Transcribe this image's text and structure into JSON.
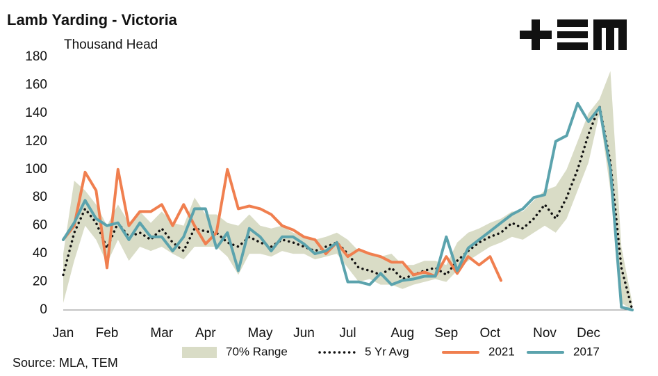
{
  "chart_data": {
    "type": "line",
    "title": "Lamb Yarding - Victoria",
    "y_label": "Thousand Head",
    "source": "Source: MLA, TEM",
    "categories": [
      "Jan",
      null,
      null,
      null,
      "Feb",
      null,
      null,
      null,
      null,
      "Mar",
      null,
      null,
      null,
      "Apr",
      null,
      null,
      null,
      null,
      "May",
      null,
      null,
      null,
      "Jun",
      null,
      null,
      null,
      "Jul",
      null,
      null,
      null,
      null,
      "Aug",
      null,
      null,
      null,
      "Sep",
      null,
      null,
      null,
      "Oct",
      null,
      null,
      null,
      null,
      "Nov",
      null,
      null,
      null,
      "Dec",
      null,
      null,
      null,
      null
    ],
    "ylim": [
      0,
      180
    ],
    "yticks": [
      0,
      20,
      40,
      60,
      80,
      100,
      120,
      140,
      160,
      180
    ],
    "range": {
      "name": "70% Range",
      "color": "#d9dcc6",
      "upper": [
        40,
        92,
        85,
        75,
        60,
        75,
        62,
        70,
        62,
        70,
        62,
        60,
        80,
        68,
        68,
        62,
        60,
        68,
        60,
        58,
        60,
        55,
        52,
        50,
        52,
        55,
        50,
        42,
        40,
        38,
        40,
        32,
        32,
        35,
        35,
        32,
        48,
        55,
        58,
        62,
        65,
        70,
        70,
        78,
        85,
        88,
        100,
        120,
        140,
        150,
        170,
        45,
        5
      ],
      "lower": [
        5,
        35,
        60,
        50,
        33,
        50,
        35,
        45,
        42,
        45,
        40,
        36,
        45,
        45,
        45,
        38,
        25,
        40,
        40,
        38,
        42,
        40,
        40,
        36,
        38,
        40,
        30,
        20,
        22,
        18,
        18,
        15,
        18,
        20,
        22,
        20,
        28,
        35,
        40,
        45,
        48,
        52,
        50,
        55,
        60,
        55,
        65,
        85,
        105,
        140,
        85,
        5,
        0
      ]
    },
    "series": [
      {
        "name": "5 Yr Avg",
        "color": "#111111",
        "style": "dotted",
        "values": [
          25,
          55,
          72,
          62,
          44,
          62,
          52,
          55,
          50,
          58,
          48,
          42,
          58,
          56,
          55,
          48,
          45,
          52,
          48,
          45,
          50,
          48,
          45,
          42,
          45,
          48,
          40,
          30,
          28,
          25,
          30,
          22,
          25,
          28,
          30,
          25,
          35,
          42,
          48,
          52,
          55,
          62,
          58,
          65,
          75,
          65,
          80,
          100,
          125,
          145,
          105,
          30,
          0
        ]
      },
      {
        "name": "2021",
        "color": "#f07f4f",
        "style": "solid",
        "values": [
          50,
          60,
          98,
          85,
          30,
          100,
          60,
          70,
          70,
          75,
          60,
          75,
          60,
          47,
          55,
          100,
          72,
          74,
          72,
          68,
          60,
          57,
          52,
          50,
          40,
          48,
          38,
          43,
          40,
          38,
          34,
          34,
          25,
          27,
          24,
          38,
          26,
          38,
          32,
          38,
          21,
          null,
          null,
          null,
          null,
          null,
          null,
          null,
          null,
          null,
          null,
          null,
          null
        ]
      },
      {
        "name": "2017",
        "color": "#5ba3ad",
        "style": "solid",
        "values": [
          50,
          62,
          78,
          65,
          60,
          62,
          50,
          62,
          52,
          52,
          42,
          52,
          72,
          72,
          44,
          55,
          28,
          58,
          52,
          42,
          52,
          52,
          47,
          40,
          42,
          48,
          20,
          20,
          18,
          26,
          18,
          21,
          22,
          24,
          24,
          52,
          28,
          44,
          50,
          56,
          62,
          68,
          72,
          80,
          82,
          120,
          124,
          147,
          134,
          144,
          100,
          2,
          0
        ]
      }
    ],
    "legend": "bottom"
  }
}
